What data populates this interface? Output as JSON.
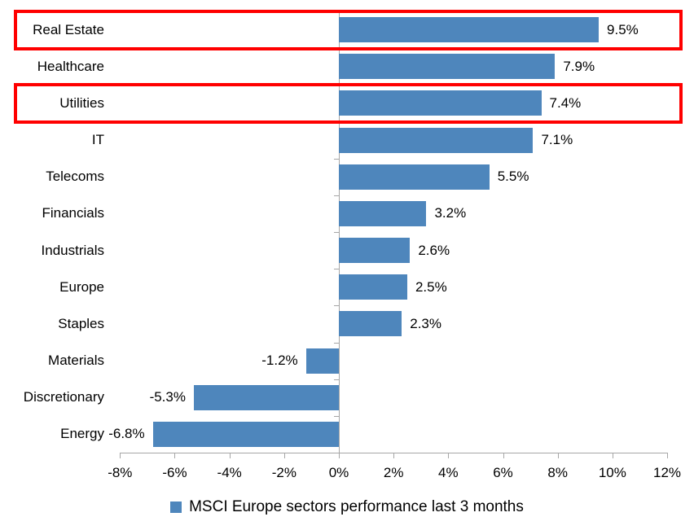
{
  "chart_data": {
    "type": "bar",
    "orientation": "horizontal",
    "title": "",
    "legend": {
      "label": "MSCI Europe sectors performance last 3 months",
      "position": "bottom",
      "marker": "square-icon"
    },
    "categories": [
      "Real Estate",
      "Healthcare",
      "Utilities",
      "IT",
      "Telecoms",
      "Financials",
      "Industrials",
      "Europe",
      "Staples",
      "Materials",
      "Discretionary",
      "Energy"
    ],
    "values": [
      9.5,
      7.9,
      7.4,
      7.1,
      5.5,
      3.2,
      2.6,
      2.5,
      2.3,
      -1.2,
      -5.3,
      -6.8
    ],
    "value_labels": [
      "9.5%",
      "7.9%",
      "7.4%",
      "7.1%",
      "5.5%",
      "3.2%",
      "2.6%",
      "2.5%",
      "2.3%",
      "-1.2%",
      "-5.3%",
      "-6.8%"
    ],
    "x_axis": {
      "min": -8,
      "max": 12,
      "tick_step": 2,
      "tick_labels": [
        "-8%",
        "-6%",
        "-4%",
        "-2%",
        "0%",
        "2%",
        "4%",
        "6%",
        "8%",
        "10%",
        "12%"
      ]
    },
    "grid": false,
    "highlighted_categories": [
      "Real Estate",
      "Utilities"
    ],
    "colors": {
      "bar": "#4E86BC",
      "axis": "#A6A6A6",
      "text": "#000000",
      "highlight_box": "#FF0000",
      "background": "#FFFFFF"
    }
  }
}
